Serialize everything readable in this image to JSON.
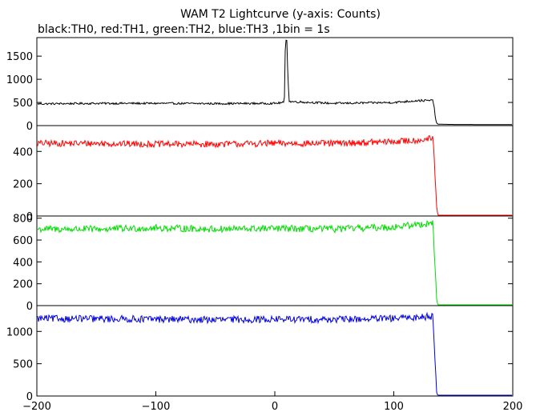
{
  "title": "WAM T2 Lightcurve (y-axis: Counts)",
  "subtitle": "black:TH0, red:TH1, green:TH2, blue:TH3 ,1bin = 1s",
  "chart_data": {
    "type": "line",
    "title": "WAM T2 Lightcurve (y-axis: Counts)",
    "subtitle": "black:TH0, red:TH1, green:TH2, blue:TH3 ,1bin = 1s",
    "xlabel": "",
    "ylabel": "",
    "xlim": [
      -200,
      200
    ],
    "x_ticks": [
      -200,
      -100,
      0,
      100,
      200
    ],
    "x_tick_labels": [
      "−200",
      "−100",
      "0",
      "100",
      "200"
    ],
    "grid": false,
    "panels": [
      {
        "name": "TH0",
        "color": "#000000",
        "ylim": [
          0,
          1900
        ],
        "y_ticks": [
          0,
          500,
          1000,
          1500
        ],
        "x": [
          -200,
          -150,
          -100,
          -50,
          0,
          8,
          9,
          10,
          11,
          12,
          50,
          100,
          120,
          133,
          134,
          135,
          136,
          137,
          150,
          200
        ],
        "values": [
          470,
          480,
          480,
          475,
          480,
          500,
          1900,
          1950,
          1100,
          520,
          480,
          500,
          540,
          540,
          400,
          150,
          60,
          30,
          25,
          20
        ]
      },
      {
        "name": "TH1",
        "color": "#ff0000",
        "ylim": [
          0,
          560
        ],
        "y_ticks": [
          0,
          200,
          400
        ],
        "x": [
          -200,
          -150,
          -100,
          -50,
          0,
          50,
          100,
          120,
          133,
          134,
          135,
          136,
          137,
          150,
          200
        ],
        "values": [
          450,
          450,
          445,
          445,
          450,
          450,
          460,
          470,
          480,
          350,
          200,
          60,
          5,
          0,
          0
        ]
      },
      {
        "name": "TH2",
        "color": "#00dd00",
        "ylim": [
          0,
          820
        ],
        "y_ticks": [
          0,
          200,
          400,
          600,
          800
        ],
        "x": [
          -200,
          -150,
          -100,
          -50,
          0,
          50,
          100,
          120,
          133,
          134,
          135,
          136,
          137,
          150,
          200
        ],
        "values": [
          700,
          700,
          710,
          700,
          705,
          700,
          720,
          740,
          760,
          500,
          300,
          60,
          5,
          0,
          0
        ]
      },
      {
        "name": "TH3",
        "color": "#0000dd",
        "ylim": [
          0,
          1400
        ],
        "y_ticks": [
          0,
          500,
          1000
        ],
        "x": [
          -200,
          -150,
          -100,
          -50,
          0,
          50,
          100,
          120,
          133,
          134,
          135,
          136,
          137,
          150,
          200
        ],
        "values": [
          1200,
          1195,
          1190,
          1180,
          1190,
          1185,
          1200,
          1220,
          1240,
          800,
          450,
          60,
          5,
          0,
          0
        ]
      }
    ]
  }
}
